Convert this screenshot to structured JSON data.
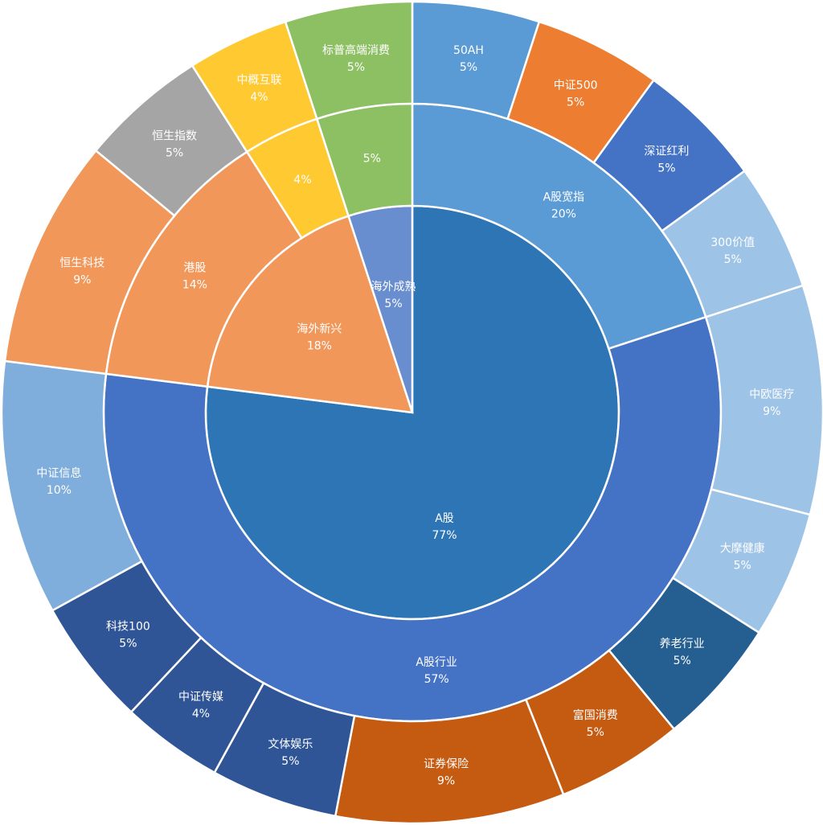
{
  "chart_data": {
    "type": "sunburst",
    "title": "",
    "unit": "%",
    "start": "top",
    "direction": "clockwise",
    "rings": [
      [
        {
          "name": "A股",
          "value": 77,
          "label": "77%",
          "color": "#2E75B6"
        },
        {
          "name": "海外新兴",
          "value": 18,
          "label": "18%",
          "color": "#F1975A"
        },
        {
          "name": "海外成熟",
          "value": 5,
          "label": "5%",
          "color": "#698ED0"
        }
      ],
      [
        {
          "name": "A股宽指",
          "value": 20,
          "label": "20%",
          "color": "#5B9BD5"
        },
        {
          "name": "A股行业",
          "value": 57,
          "label": "57%",
          "color": "#4472C4"
        },
        {
          "name": "港股",
          "value": 14,
          "label": "14%",
          "color": "#F1975A"
        },
        {
          "name": "",
          "value": 4,
          "label": "4%",
          "color": "#FFC931"
        },
        {
          "name": "",
          "value": 5,
          "label": "5%",
          "color": "#8DC063"
        }
      ],
      [
        {
          "name": "50AH",
          "value": 5,
          "label": "5%",
          "color": "#5B9BD5"
        },
        {
          "name": "中证500",
          "value": 5,
          "label": "5%",
          "color": "#ED7D31"
        },
        {
          "name": "深证红利",
          "value": 5,
          "label": "5%",
          "color": "#4472C4"
        },
        {
          "name": "300价值",
          "value": 5,
          "label": "5%",
          "color": "#9DC3E6"
        },
        {
          "name": "中欧医疗",
          "value": 9,
          "label": "9%",
          "color": "#9DC3E6"
        },
        {
          "name": "大摩健康",
          "value": 5,
          "label": "5%",
          "color": "#9DC3E6"
        },
        {
          "name": "养老行业",
          "value": 5,
          "label": "5%",
          "color": "#255E91"
        },
        {
          "name": "富国消费",
          "value": 5,
          "label": "5%",
          "color": "#C55A11"
        },
        {
          "name": "证券保险",
          "value": 9,
          "label": "9%",
          "color": "#C55A11"
        },
        {
          "name": "文体娱乐",
          "value": 5,
          "label": "5%",
          "color": "#2F5597"
        },
        {
          "name": "中证传媒",
          "value": 4,
          "label": "4%",
          "color": "#2F5597"
        },
        {
          "name": "科技100",
          "value": 5,
          "label": "5%",
          "color": "#2F5597"
        },
        {
          "name": "中证信息",
          "value": 10,
          "label": "10%",
          "color": "#7FAEDC"
        },
        {
          "name": "恒生科技",
          "value": 9,
          "label": "9%",
          "color": "#F1975A"
        },
        {
          "name": "恒生指数",
          "value": 5,
          "label": "5%",
          "color": "#A5A5A5"
        },
        {
          "name": "中概互联",
          "value": 4,
          "label": "4%",
          "color": "#FFC931"
        },
        {
          "name": "标普高端消费",
          "value": 5,
          "label": "5%",
          "color": "#8DC063"
        }
      ]
    ]
  }
}
